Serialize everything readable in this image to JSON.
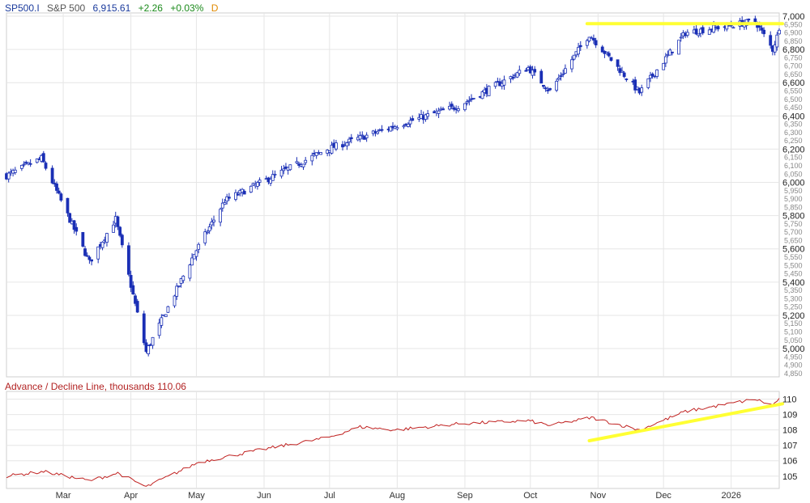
{
  "header": {
    "symbol": "SP500.I",
    "name": "S&P 500",
    "price": "6,915.61",
    "change": "+2.26",
    "change_pct": "+0.03%",
    "period": "D"
  },
  "lower_label": "Advance / Decline Line, thousands 110.06",
  "colors": {
    "candle": "#1a2fb5",
    "ad_line": "#c0201f",
    "trendline": "#ffff33",
    "grid": "#e6e6e6",
    "axis_text": "#333333"
  },
  "chart_data": [
    {
      "type": "candlestick",
      "name": "S&P 500",
      "ylim": [
        4830,
        7000
      ],
      "y_major_ticks": [
        "7,000",
        "6,800",
        "6,600",
        "6,400",
        "6,200",
        "6,000",
        "5,800",
        "5,600",
        "5,400",
        "5,200",
        "5,000"
      ],
      "y_minor_ticks": [
        "6,950",
        "6,900",
        "6,850",
        "6,750",
        "6,700",
        "6,650",
        "6,550",
        "6,500",
        "6,450",
        "6,350",
        "6,300",
        "6,250",
        "6,150",
        "6,100",
        "6,050",
        "5,950",
        "5,900",
        "5,850",
        "5,750",
        "5,700",
        "5,650",
        "5,550",
        "5,500",
        "5,450",
        "5,350",
        "5,300",
        "5,250",
        "5,150",
        "5,100",
        "5,050",
        "4,950",
        "4,900",
        "4,850"
      ],
      "x_start": "2025-02-03",
      "x_end": "2026-01-23",
      "x_labels": [
        {
          "label": "Mar",
          "date": "2025-03-01"
        },
        {
          "label": "Apr",
          "date": "2025-04-01"
        },
        {
          "label": "May",
          "date": "2025-05-01"
        },
        {
          "label": "Jun",
          "date": "2025-06-01"
        },
        {
          "label": "Jul",
          "date": "2025-07-01"
        },
        {
          "label": "Aug",
          "date": "2025-08-01"
        },
        {
          "label": "Sep",
          "date": "2025-09-01"
        },
        {
          "label": "Oct",
          "date": "2025-10-01"
        },
        {
          "label": "Nov",
          "date": "2025-11-01"
        },
        {
          "label": "Dec",
          "date": "2025-12-01"
        },
        {
          "label": "2026",
          "date": "2026-01-01"
        }
      ],
      "key_points": [
        {
          "date": "2025-02-03",
          "close": 6040
        },
        {
          "date": "2025-02-19",
          "close": 6145
        },
        {
          "date": "2025-03-13",
          "close": 5520
        },
        {
          "date": "2025-03-25",
          "close": 5780
        },
        {
          "date": "2025-04-08",
          "close": 4980
        },
        {
          "date": "2025-04-30",
          "close": 5570
        },
        {
          "date": "2025-05-14",
          "close": 5890
        },
        {
          "date": "2025-06-30",
          "close": 6200
        },
        {
          "date": "2025-07-31",
          "close": 6340
        },
        {
          "date": "2025-08-29",
          "close": 6460
        },
        {
          "date": "2025-09-30",
          "close": 6690
        },
        {
          "date": "2025-10-10",
          "close": 6550
        },
        {
          "date": "2025-10-28",
          "close": 6890
        },
        {
          "date": "2025-11-20",
          "close": 6540
        },
        {
          "date": "2025-12-11",
          "close": 6900
        },
        {
          "date": "2026-01-12",
          "close": 6970
        },
        {
          "date": "2026-01-20",
          "close": 6800
        },
        {
          "date": "2026-01-23",
          "close": 6915.61
        }
      ],
      "resistance_line": {
        "from_date": "2025-10-27",
        "to_date": "2026-01-23",
        "value": 6955
      }
    },
    {
      "type": "line",
      "name": "Advance / Decline Line",
      "ylim": [
        104.2,
        110.4
      ],
      "y_ticks": [
        "110",
        "109",
        "108",
        "107",
        "106",
        "105"
      ],
      "key_points": [
        {
          "date": "2025-02-03",
          "value": 105.0
        },
        {
          "date": "2025-02-20",
          "value": 105.3
        },
        {
          "date": "2025-03-13",
          "value": 104.7
        },
        {
          "date": "2025-03-26",
          "value": 105.2
        },
        {
          "date": "2025-04-08",
          "value": 104.3
        },
        {
          "date": "2025-05-02",
          "value": 105.9
        },
        {
          "date": "2025-05-30",
          "value": 106.7
        },
        {
          "date": "2025-06-30",
          "value": 107.5
        },
        {
          "date": "2025-07-15",
          "value": 108.2
        },
        {
          "date": "2025-07-31",
          "value": 108.0
        },
        {
          "date": "2025-08-29",
          "value": 108.4
        },
        {
          "date": "2025-09-30",
          "value": 108.6
        },
        {
          "date": "2025-10-10",
          "value": 108.3
        },
        {
          "date": "2025-10-29",
          "value": 108.8
        },
        {
          "date": "2025-11-20",
          "value": 108.0
        },
        {
          "date": "2025-12-11",
          "value": 109.2
        },
        {
          "date": "2026-01-12",
          "value": 110.0
        },
        {
          "date": "2026-01-20",
          "value": 109.6
        },
        {
          "date": "2026-01-23",
          "value": 110.06
        }
      ],
      "trendline": {
        "from": {
          "date": "2025-10-28",
          "value": 107.3
        },
        "to": {
          "date": "2026-01-23",
          "value": 109.7
        }
      }
    }
  ]
}
